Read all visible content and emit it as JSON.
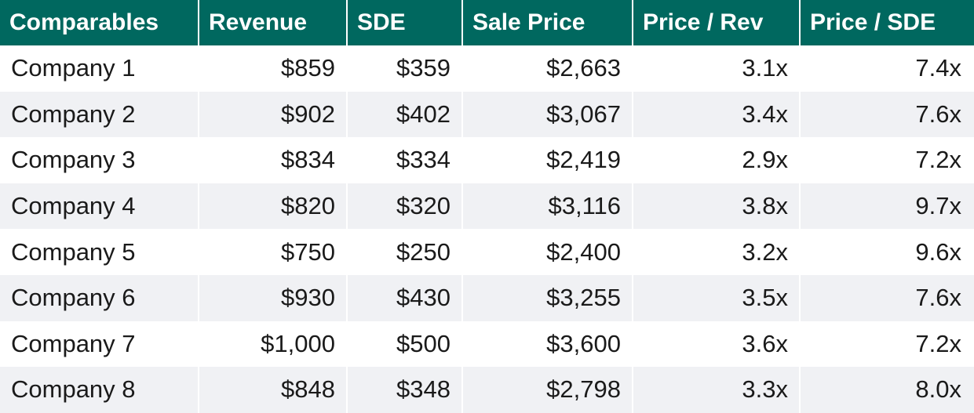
{
  "chart_data": {
    "type": "table",
    "columns": [
      "Comparables",
      "Revenue",
      "SDE",
      "Sale Price",
      "Price / Rev",
      "Price / SDE"
    ],
    "rows": [
      [
        "Company 1",
        "$859",
        "$359",
        "$2,663",
        "3.1x",
        "7.4x"
      ],
      [
        "Company 2",
        "$902",
        "$402",
        "$3,067",
        "3.4x",
        "7.6x"
      ],
      [
        "Company 3",
        "$834",
        "$334",
        "$2,419",
        "2.9x",
        "7.2x"
      ],
      [
        "Company 4",
        "$820",
        "$320",
        "$3,116",
        "3.8x",
        "9.7x"
      ],
      [
        "Company 5",
        "$750",
        "$250",
        "$2,400",
        "3.2x",
        "9.6x"
      ],
      [
        "Company 6",
        "$930",
        "$430",
        "$3,255",
        "3.5x",
        "7.6x"
      ],
      [
        "Company 7",
        "$1,000",
        "$500",
        "$3,600",
        "3.6x",
        "7.2x"
      ],
      [
        "Company 8",
        "$848",
        "$348",
        "$2,798",
        "3.3x",
        "8.0x"
      ]
    ],
    "header_color": "#00685f",
    "stripe_color": "#f0f1f4"
  }
}
